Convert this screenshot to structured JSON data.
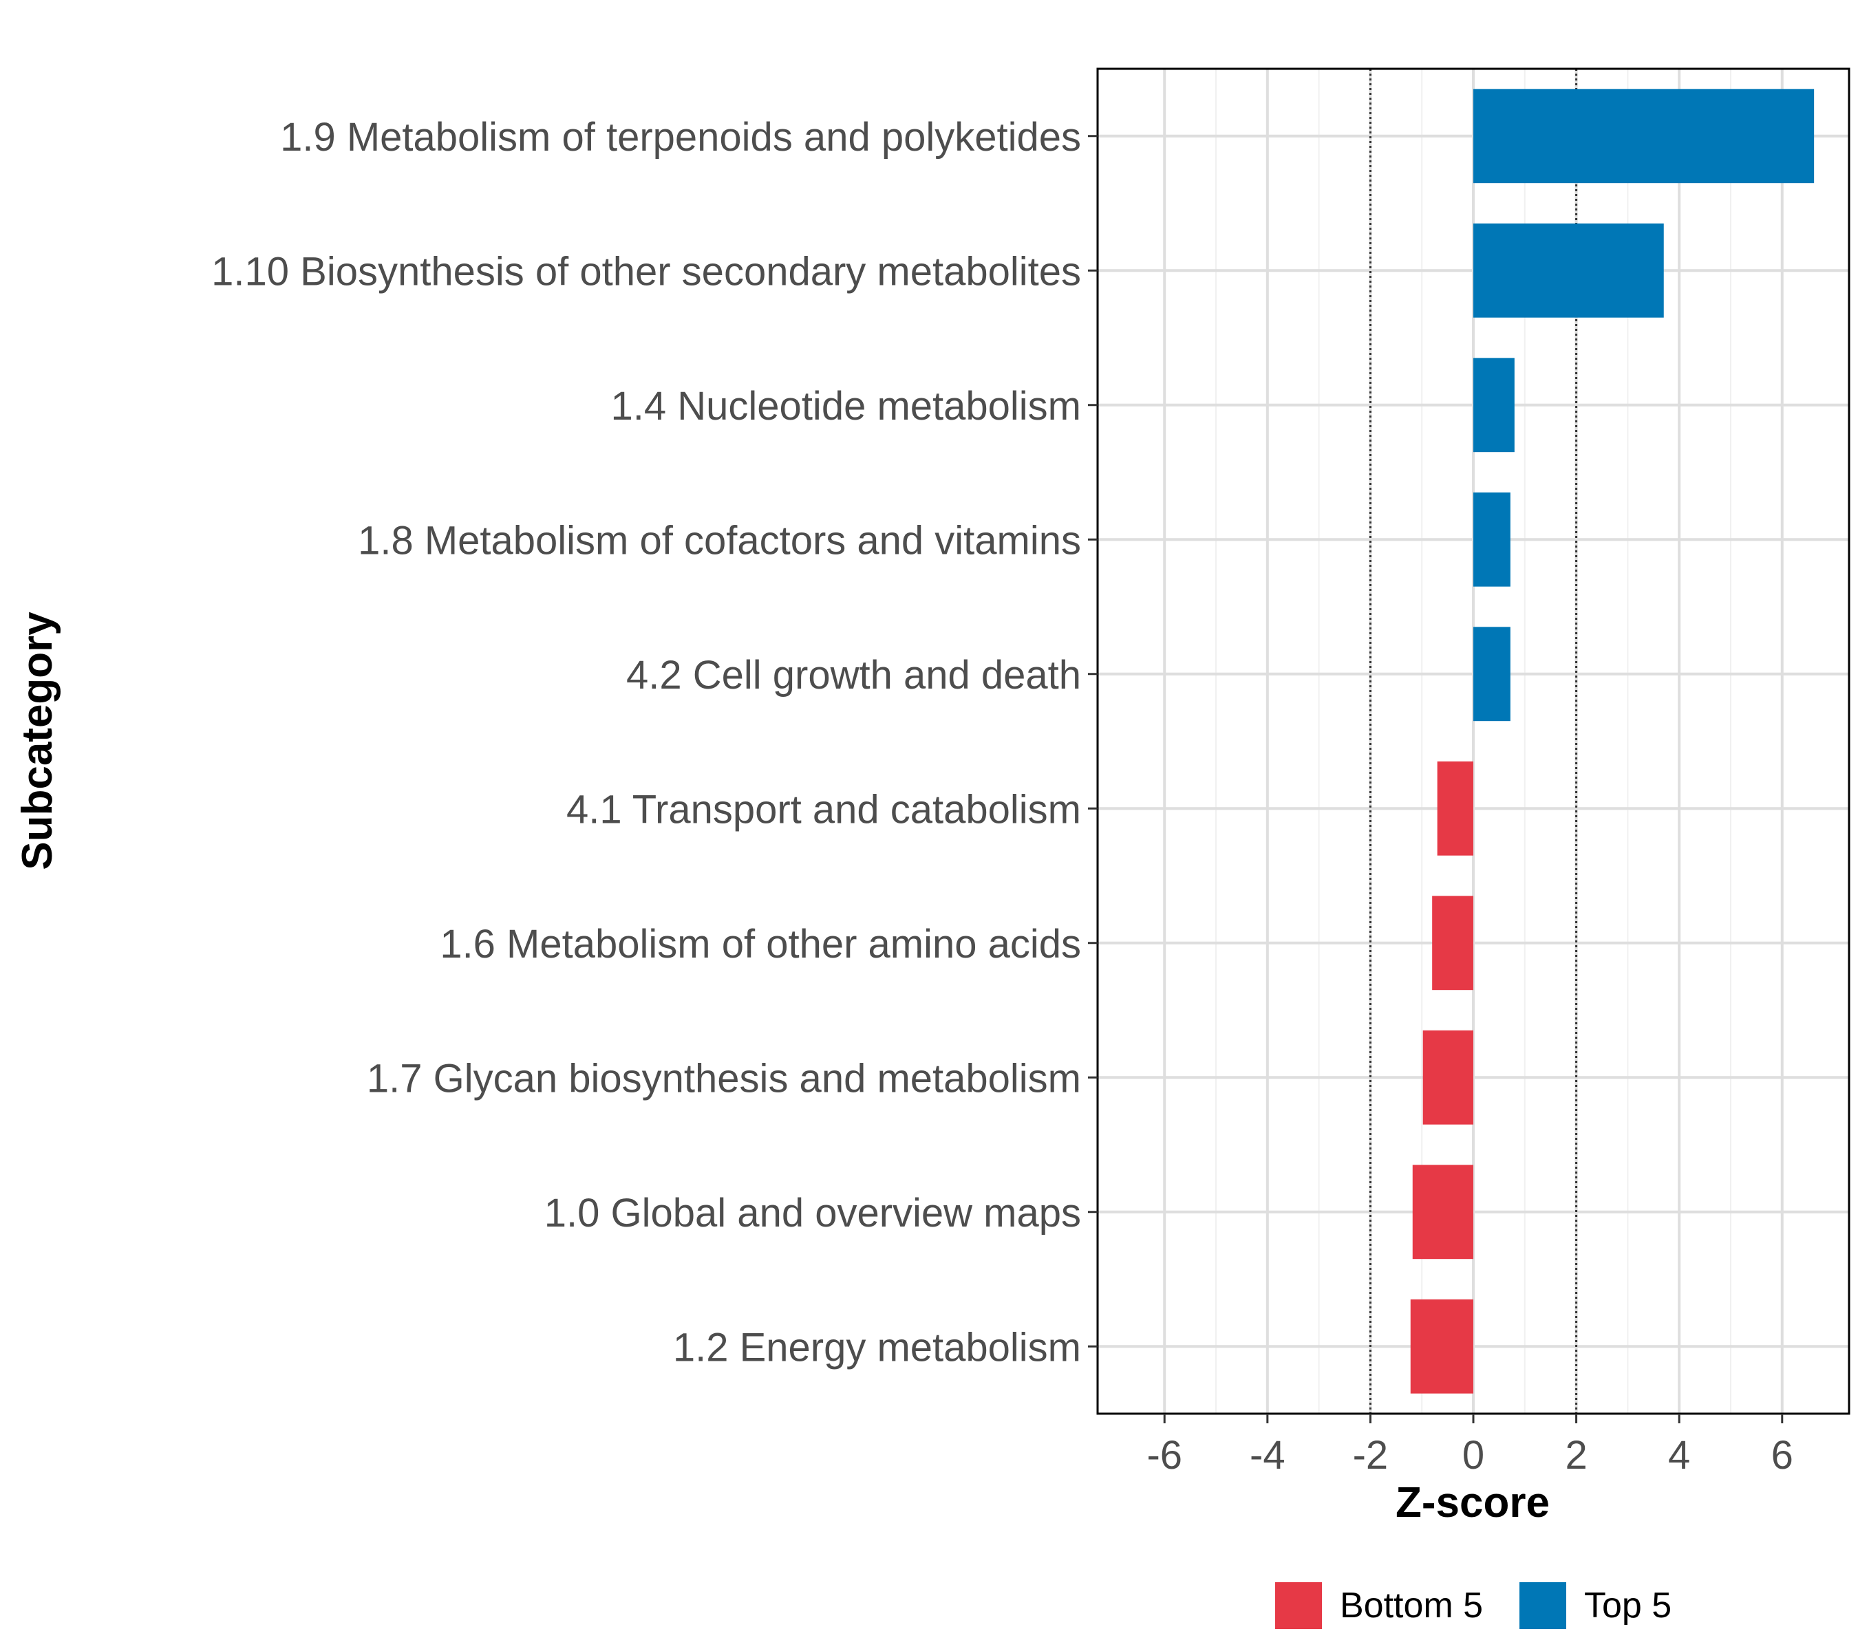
{
  "chart_data": {
    "type": "bar",
    "orientation": "horizontal",
    "categories": [
      "1.9 Metabolism of terpenoids and polyketides",
      "1.10 Biosynthesis of other secondary metabolites",
      "1.4 Nucleotide metabolism",
      "1.8 Metabolism of cofactors and vitamins",
      "4.2 Cell growth and death",
      "4.1 Transport and catabolism",
      "1.6 Metabolism of other amino acids",
      "1.7 Glycan biosynthesis and metabolism",
      "1.0 Global and overview maps",
      "1.2 Energy metabolism"
    ],
    "values": [
      6.62,
      3.7,
      0.8,
      0.72,
      0.72,
      -0.7,
      -0.8,
      -0.98,
      -1.18,
      -1.22
    ],
    "groups": [
      "Top 5",
      "Top 5",
      "Top 5",
      "Top 5",
      "Top 5",
      "Bottom 5",
      "Bottom 5",
      "Bottom 5",
      "Bottom 5",
      "Bottom 5"
    ],
    "xlabel": "Z-score",
    "ylabel": "Subcategory",
    "xlim": [
      -7.3,
      7.3
    ],
    "xticks": [
      -6,
      -4,
      -2,
      0,
      2,
      4,
      6
    ],
    "xtick_labels": [
      "-6",
      "-4",
      "-2",
      "0",
      "2",
      "4",
      "6"
    ],
    "reference_lines": [
      -2,
      2
    ],
    "grid": true,
    "legend": {
      "position": "bottom",
      "entries": [
        {
          "label": "Bottom 5",
          "color": "#e63946"
        },
        {
          "label": "Top 5",
          "color": "#0077b6"
        }
      ]
    }
  }
}
